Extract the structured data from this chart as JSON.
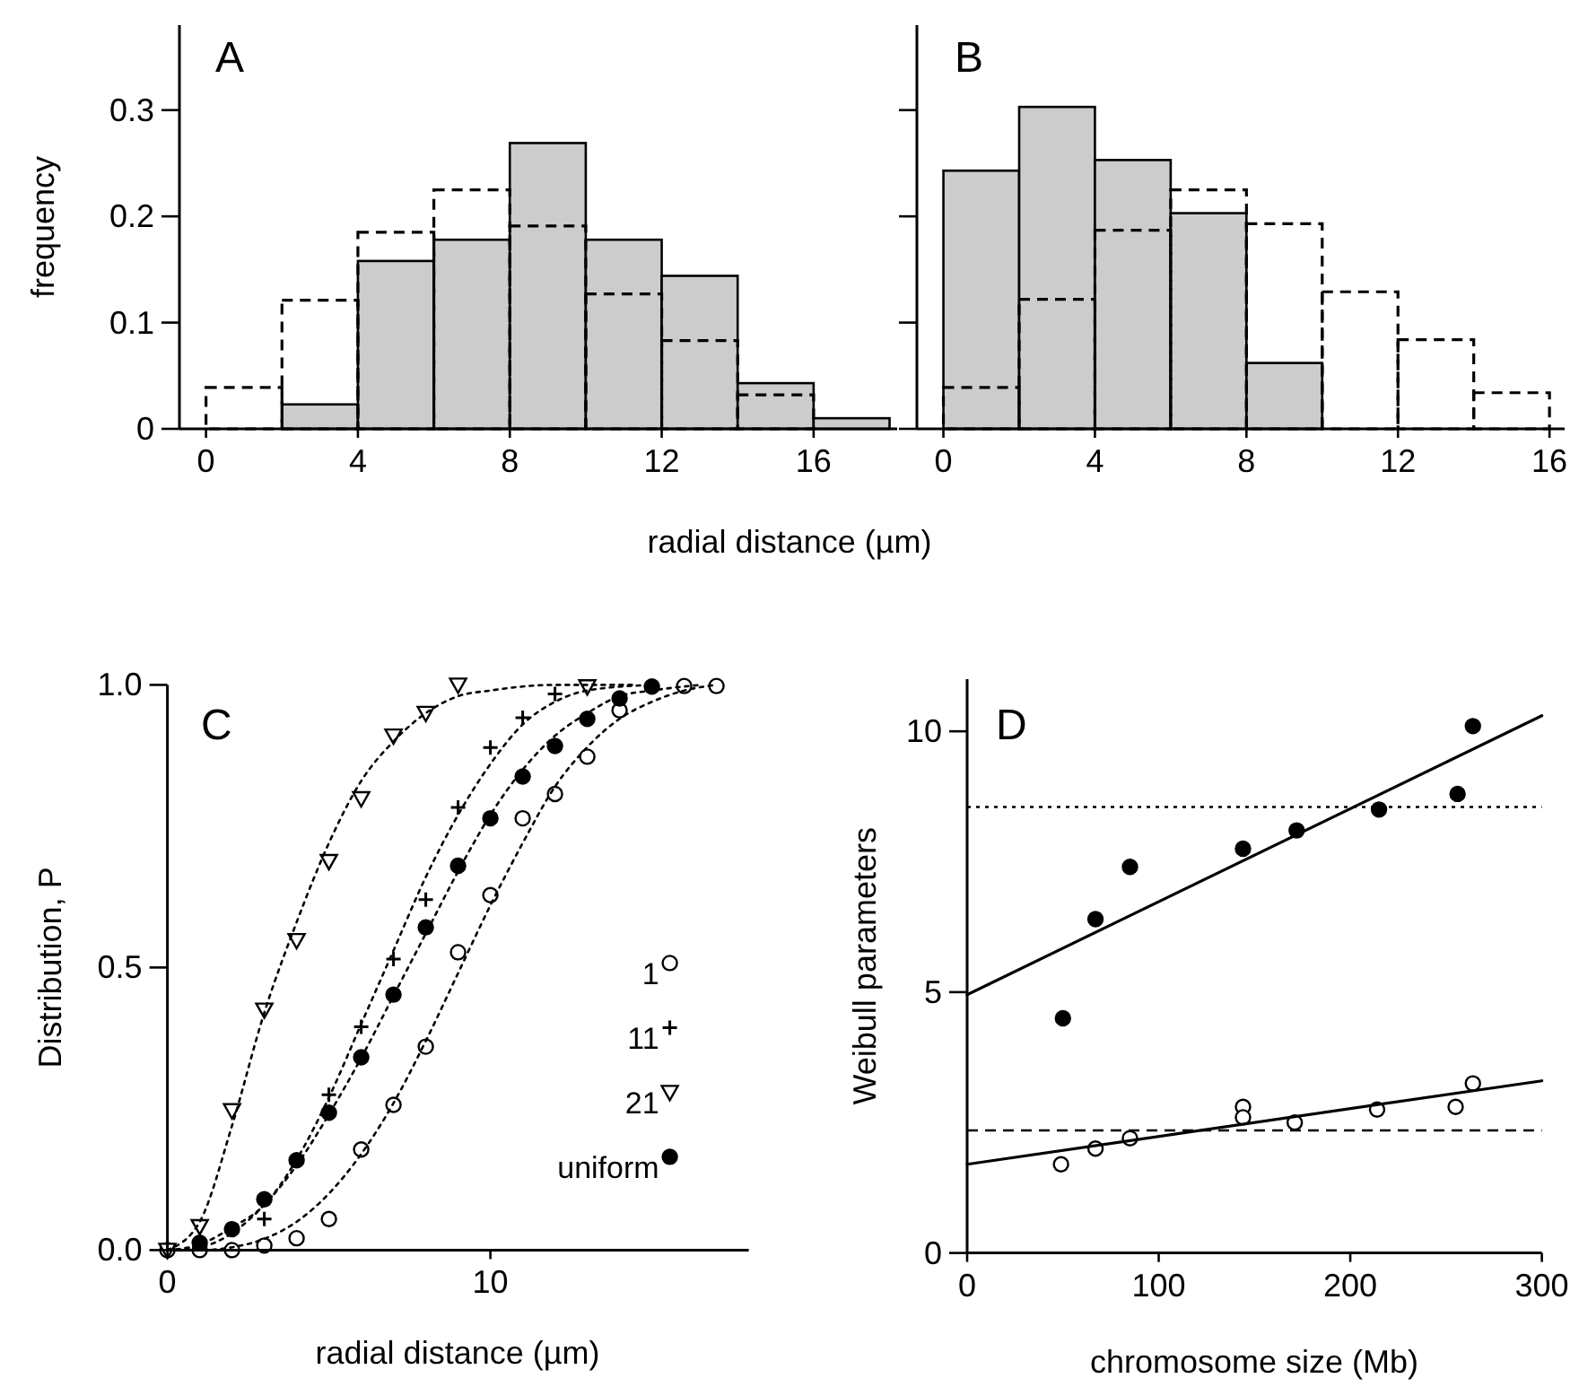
{
  "chart_data": [
    {
      "type": "histogram",
      "title": "A",
      "xlabel": "radial distance (µm)",
      "ylabel": "frequency",
      "bins": [
        0,
        2,
        4,
        6,
        8,
        10,
        12,
        14,
        16,
        18
      ],
      "xlim": [
        -0.7,
        18.2
      ],
      "xticks": [
        0,
        4,
        8,
        12,
        16
      ],
      "ylim": [
        0,
        0.38
      ],
      "yticks": [
        0,
        0.1,
        0.2,
        0.3
      ],
      "series": [
        {
          "color": "#cccccc",
          "values": [
            0,
            0.023,
            0.158,
            0.178,
            0.269,
            0.178,
            0.144,
            0.043,
            0.01
          ]
        },
        {
          "color": "#000000",
          "line_style": "dashed",
          "values": [
            0.039,
            0.121,
            0.185,
            0.225,
            0.191,
            0.127,
            0.083,
            0.032,
            null
          ]
        }
      ]
    },
    {
      "type": "histogram",
      "title": "B",
      "bins": [
        0,
        2,
        4,
        6,
        8,
        10,
        12,
        14,
        16
      ],
      "xlim": [
        -0.7,
        16.4
      ],
      "xticks": [
        0,
        4,
        8,
        12,
        16
      ],
      "ylim": [
        0,
        0.38
      ],
      "yticks": [
        0,
        0.1,
        0.2,
        0.3
      ],
      "tick_labels": "x",
      "series": [
        {
          "color": "#cccccc",
          "values": [
            0.243,
            0.303,
            0.253,
            0.203,
            0.062,
            0,
            0,
            0
          ]
        },
        {
          "color": "#000000",
          "line_style": "dashed",
          "values": [
            0.039,
            0.122,
            0.187,
            0.225,
            0.193,
            0.129,
            0.084,
            0.034
          ]
        }
      ]
    },
    {
      "type": "scatter",
      "title": "C",
      "xlabel": "radial distance (µm)",
      "ylabel": "Distribution, P",
      "xlim": [
        0,
        18
      ],
      "xticks": [
        0,
        10
      ],
      "ylim": [
        0,
        1
      ],
      "yticks": [
        {
          "value": 0,
          "label": "0.0"
        },
        {
          "value": 0.5,
          "label": "0.5"
        },
        {
          "value": 1,
          "label": "1.0"
        }
      ],
      "legend": "bottom right",
      "series": [
        {
          "name": "1",
          "color": "#ffffff",
          "marker": "circle",
          "x": [
            0,
            1,
            2,
            3,
            4,
            5,
            6,
            7,
            8,
            9,
            10,
            11,
            12,
            13,
            14,
            16,
            17
          ],
          "values": [
            0,
            0,
            0,
            0.008,
            0.021,
            0.055,
            0.178,
            0.257,
            0.36,
            0.527,
            0.628,
            0.764,
            0.807,
            0.873,
            0.955,
            0.998,
            0.998
          ]
        },
        {
          "name": "11",
          "color": "#000000",
          "marker": "cross",
          "x": [
            3,
            5,
            6,
            7,
            8,
            9,
            10,
            11,
            12
          ],
          "values": [
            0.055,
            0.275,
            0.395,
            0.515,
            0.62,
            0.783,
            0.889,
            0.942,
            0.984
          ]
        },
        {
          "name": "21",
          "color": "#ffffff",
          "marker": "triangle",
          "x": [
            0,
            1,
            2,
            3,
            4,
            5,
            6,
            7,
            8,
            9,
            13
          ],
          "values": [
            0,
            0.042,
            0.247,
            0.425,
            0.548,
            0.688,
            0.799,
            0.91,
            0.95,
            1.0,
            0.997
          ]
        },
        {
          "name": "uniform",
          "color": "#000000",
          "marker": "circle",
          "x": [
            1,
            2,
            3,
            4,
            5,
            6,
            7,
            8,
            9,
            10,
            11,
            12,
            13,
            14,
            15
          ],
          "values": [
            0.013,
            0.037,
            0.09,
            0.159,
            0.243,
            0.341,
            0.452,
            0.571,
            0.68,
            0.764,
            0.838,
            0.892,
            0.94,
            0.976,
            0.997
          ]
        },
        {
          "type": "line",
          "color": "#000000",
          "line_style": "dotted",
          "marker": "none",
          "x": [
            0,
            1,
            2,
            3,
            4,
            5,
            6,
            7,
            8,
            9,
            10,
            11,
            12,
            13,
            14,
            15,
            16,
            17
          ],
          "values": [
            0,
            0,
            0.005,
            0.02,
            0.05,
            0.1,
            0.17,
            0.26,
            0.37,
            0.49,
            0.61,
            0.72,
            0.82,
            0.89,
            0.94,
            0.97,
            0.99,
            1.0
          ]
        },
        {
          "type": "line",
          "color": "#000000",
          "line_style": "dotted",
          "marker": "none",
          "x": [
            0,
            1,
            2,
            3,
            4,
            5,
            6,
            7,
            8,
            9,
            10,
            11,
            12,
            13,
            15
          ],
          "values": [
            0,
            0.01,
            0.04,
            0.08,
            0.16,
            0.27,
            0.4,
            0.53,
            0.66,
            0.77,
            0.86,
            0.93,
            0.97,
            0.99,
            1.0
          ]
        },
        {
          "type": "line",
          "color": "#000000",
          "line_style": "dotted",
          "marker": "none",
          "x": [
            0,
            1,
            2,
            3,
            4,
            5,
            6,
            7,
            8,
            9,
            10,
            12,
            14.5
          ],
          "values": [
            0,
            0.05,
            0.22,
            0.42,
            0.58,
            0.72,
            0.83,
            0.9,
            0.95,
            0.98,
            0.99,
            1.0,
            1.0
          ]
        },
        {
          "type": "line",
          "color": "#000000",
          "line_style": "dotted",
          "marker": "none",
          "x": [
            0,
            1,
            2,
            3,
            4,
            5,
            6,
            7,
            8,
            9,
            10,
            11,
            12,
            13,
            14,
            15,
            16.5
          ],
          "values": [
            0,
            0.005,
            0.03,
            0.08,
            0.15,
            0.24,
            0.34,
            0.45,
            0.56,
            0.67,
            0.77,
            0.85,
            0.91,
            0.95,
            0.98,
            0.99,
            1.0
          ]
        }
      ]
    },
    {
      "type": "scatter",
      "title": "D",
      "xlabel": "chromosome size (Mb)",
      "ylabel": "Weibull parameters",
      "xlim": [
        0,
        300
      ],
      "xticks": [
        0,
        100,
        200,
        300
      ],
      "ylim": [
        0,
        11
      ],
      "yticks": [
        0,
        5,
        10
      ],
      "ref_lines": [
        {
          "axis": "y",
          "value": 8.55,
          "line_style": "dotted",
          "color": "#000000"
        },
        {
          "axis": "y",
          "value": 2.35,
          "line_style": "dashed",
          "color": "#000000"
        }
      ],
      "series": [
        {
          "color": "#000000",
          "marker": "circle",
          "x": [
            50,
            67,
            85,
            144,
            172,
            215,
            256,
            264
          ],
          "values": [
            4.5,
            6.4,
            7.4,
            7.75,
            8.1,
            8.5,
            8.8,
            10.1
          ]
        },
        {
          "color": "#ffffff",
          "marker": "circle",
          "x": [
            49,
            67,
            85,
            144,
            144,
            171,
            214,
            255,
            264
          ],
          "values": [
            1.7,
            2.0,
            2.2,
            2.8,
            2.6,
            2.5,
            2.75,
            2.8,
            3.25
          ]
        },
        {
          "type": "line",
          "color": "#000000",
          "line_style": "solid",
          "marker": "none",
          "x": [
            0,
            300
          ],
          "values": [
            4.95,
            10.3
          ]
        },
        {
          "type": "line",
          "color": "#000000",
          "line_style": "solid",
          "marker": "none",
          "x": [
            0,
            300
          ],
          "values": [
            1.7,
            3.3
          ]
        }
      ]
    }
  ]
}
